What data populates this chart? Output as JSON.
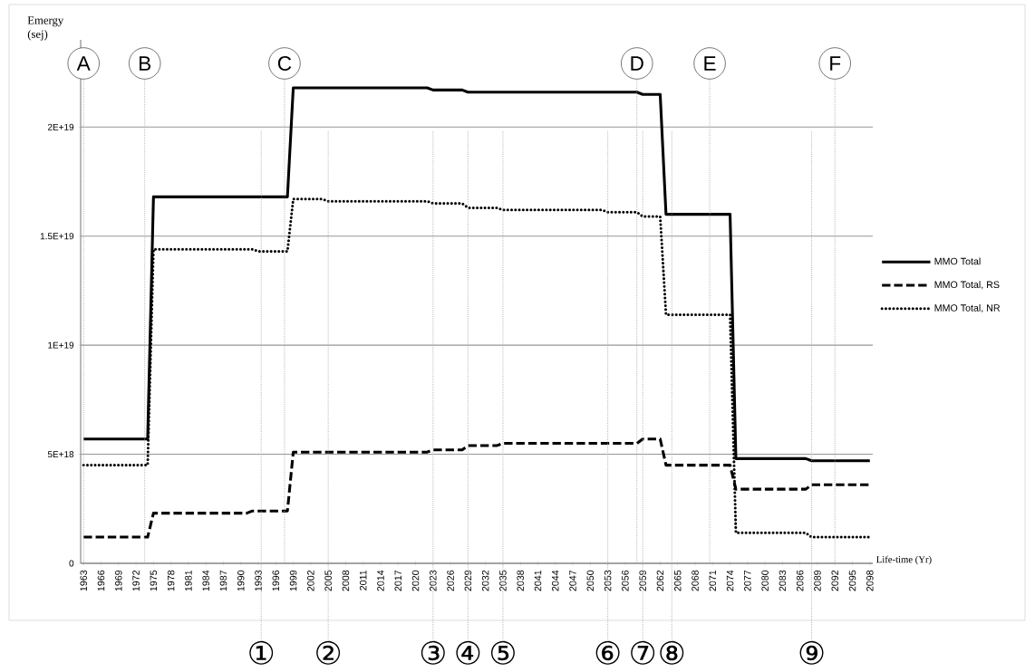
{
  "chart_data": {
    "type": "line",
    "xlabel": "Life-time (Yr)",
    "ylabel": "Emergy (sej)",
    "xlim": [
      1962.5,
      2098.5
    ],
    "xticks": [
      1963,
      1966,
      1969,
      1972,
      1975,
      1978,
      1981,
      1984,
      1987,
      1990,
      1993,
      1996,
      1999,
      2002,
      2005,
      2008,
      2011,
      2014,
      2017,
      2020,
      2023,
      2026,
      2029,
      2032,
      2035,
      2038,
      2041,
      2044,
      2047,
      2050,
      2053,
      2056,
      2059,
      2062,
      2065,
      2068,
      2071,
      2074,
      2077,
      2080,
      2083,
      2086,
      2089,
      2092,
      2095,
      2098
    ],
    "ylim": [
      0,
      2.4e+19
    ],
    "yticks": [
      0,
      {
        "value": 5e+18,
        "label": "5E+18"
      },
      {
        "value": 1e+19,
        "label": "1E+19"
      },
      {
        "value": 1.5e+19,
        "label": "1.5E+19"
      },
      {
        "value": 2e+19,
        "label": "2E+19"
      }
    ],
    "grid": "y",
    "legend": "right",
    "series": [
      {
        "name": "MMO Total",
        "color": "#000000",
        "line_style": "solid",
        "x": [
          1963,
          1974,
          1975,
          1998,
          1999,
          2022,
          2023,
          2028,
          2029,
          2058,
          2059,
          2062,
          2063,
          2074,
          2075,
          2087,
          2088,
          2098
        ],
        "values": [
          5.7e+18,
          5.7e+18,
          1.68e+19,
          1.68e+19,
          2.18e+19,
          2.18e+19,
          2.17e+19,
          2.17e+19,
          2.16e+19,
          2.16e+19,
          2.15e+19,
          2.15e+19,
          1.6e+19,
          1.6e+19,
          4.8e+18,
          4.8e+18,
          4.7e+18,
          4.7e+18
        ]
      },
      {
        "name": "MMO Total, RS",
        "color": "#000000",
        "line_style": "dashed",
        "x": [
          1963,
          1974,
          1975,
          1991,
          1992,
          1998,
          1999,
          2022,
          2023,
          2028,
          2029,
          2034,
          2035,
          2058,
          2059,
          2062,
          2063,
          2074,
          2075,
          2087,
          2088,
          2098
        ],
        "values": [
          1.2e+18,
          1.2e+18,
          2.3e+18,
          2.3e+18,
          2.4e+18,
          2.4e+18,
          5.1e+18,
          5.1e+18,
          5.2e+18,
          5.2e+18,
          5.4e+18,
          5.4e+18,
          5.5e+18,
          5.5e+18,
          5.7e+18,
          5.7e+18,
          4.5e+18,
          4.5e+18,
          3.4e+18,
          3.4e+18,
          3.6e+18,
          3.6e+18
        ]
      },
      {
        "name": "MMO Total, NR",
        "color": "#000000",
        "line_style": "dotted",
        "x": [
          1963,
          1974,
          1975,
          1992,
          1993,
          1998,
          1999,
          2004,
          2005,
          2022,
          2023,
          2028,
          2029,
          2034,
          2035,
          2052,
          2053,
          2058,
          2059,
          2062,
          2063,
          2074,
          2075,
          2087,
          2088,
          2098
        ],
        "values": [
          4.5e+18,
          4.5e+18,
          1.44e+19,
          1.44e+19,
          1.43e+19,
          1.43e+19,
          1.67e+19,
          1.67e+19,
          1.66e+19,
          1.66e+19,
          1.65e+19,
          1.65e+19,
          1.63e+19,
          1.63e+19,
          1.62e+19,
          1.62e+19,
          1.61e+19,
          1.61e+19,
          1.59e+19,
          1.59e+19,
          1.14e+19,
          1.14e+19,
          1.4e+18,
          1.4e+18,
          1.2e+18,
          1.2e+18
        ]
      }
    ],
    "ref_lines": [
      {
        "axis": "x",
        "value": 1963,
        "label": "A",
        "color": "#a6a6a6",
        "line_style": "dotted"
      },
      {
        "axis": "x",
        "value": 1973.5,
        "label": "B",
        "color": "#a6a6a6",
        "line_style": "dotted"
      },
      {
        "axis": "x",
        "value": 1997.5,
        "label": "C",
        "color": "#a6a6a6",
        "line_style": "dotted"
      },
      {
        "axis": "x",
        "value": 2058,
        "label": "D",
        "color": "#a6a6a6",
        "line_style": "dotted"
      },
      {
        "axis": "x",
        "value": 2070.5,
        "label": "E",
        "color": "#a6a6a6",
        "line_style": "dotted"
      },
      {
        "axis": "x",
        "value": 2092,
        "label": "F",
        "color": "#a6a6a6",
        "line_style": "dotted"
      },
      {
        "axis": "x",
        "value": 1993.5,
        "label": "①",
        "color": "#a6a6a6",
        "line_style": "dotted"
      },
      {
        "axis": "x",
        "value": 2005,
        "label": "②",
        "color": "#a6a6a6",
        "line_style": "dotted"
      },
      {
        "axis": "x",
        "value": 2023,
        "label": "③",
        "color": "#a6a6a6",
        "line_style": "dotted"
      },
      {
        "axis": "x",
        "value": 2029,
        "label": "④",
        "color": "#a6a6a6",
        "line_style": "dotted"
      },
      {
        "axis": "x",
        "value": 2035,
        "label": "⑤",
        "color": "#a6a6a6",
        "line_style": "dotted"
      },
      {
        "axis": "x",
        "value": 2053,
        "label": "⑥",
        "color": "#a6a6a6",
        "line_style": "dotted"
      },
      {
        "axis": "x",
        "value": 2059,
        "label": "⑦",
        "color": "#a6a6a6",
        "line_style": "dotted"
      },
      {
        "axis": "x",
        "value": 2064,
        "label": "⑧",
        "color": "#a6a6a6",
        "line_style": "dotted"
      },
      {
        "axis": "x",
        "value": 2088,
        "label": "⑨",
        "color": "#a6a6a6",
        "line_style": "dotted"
      }
    ]
  }
}
